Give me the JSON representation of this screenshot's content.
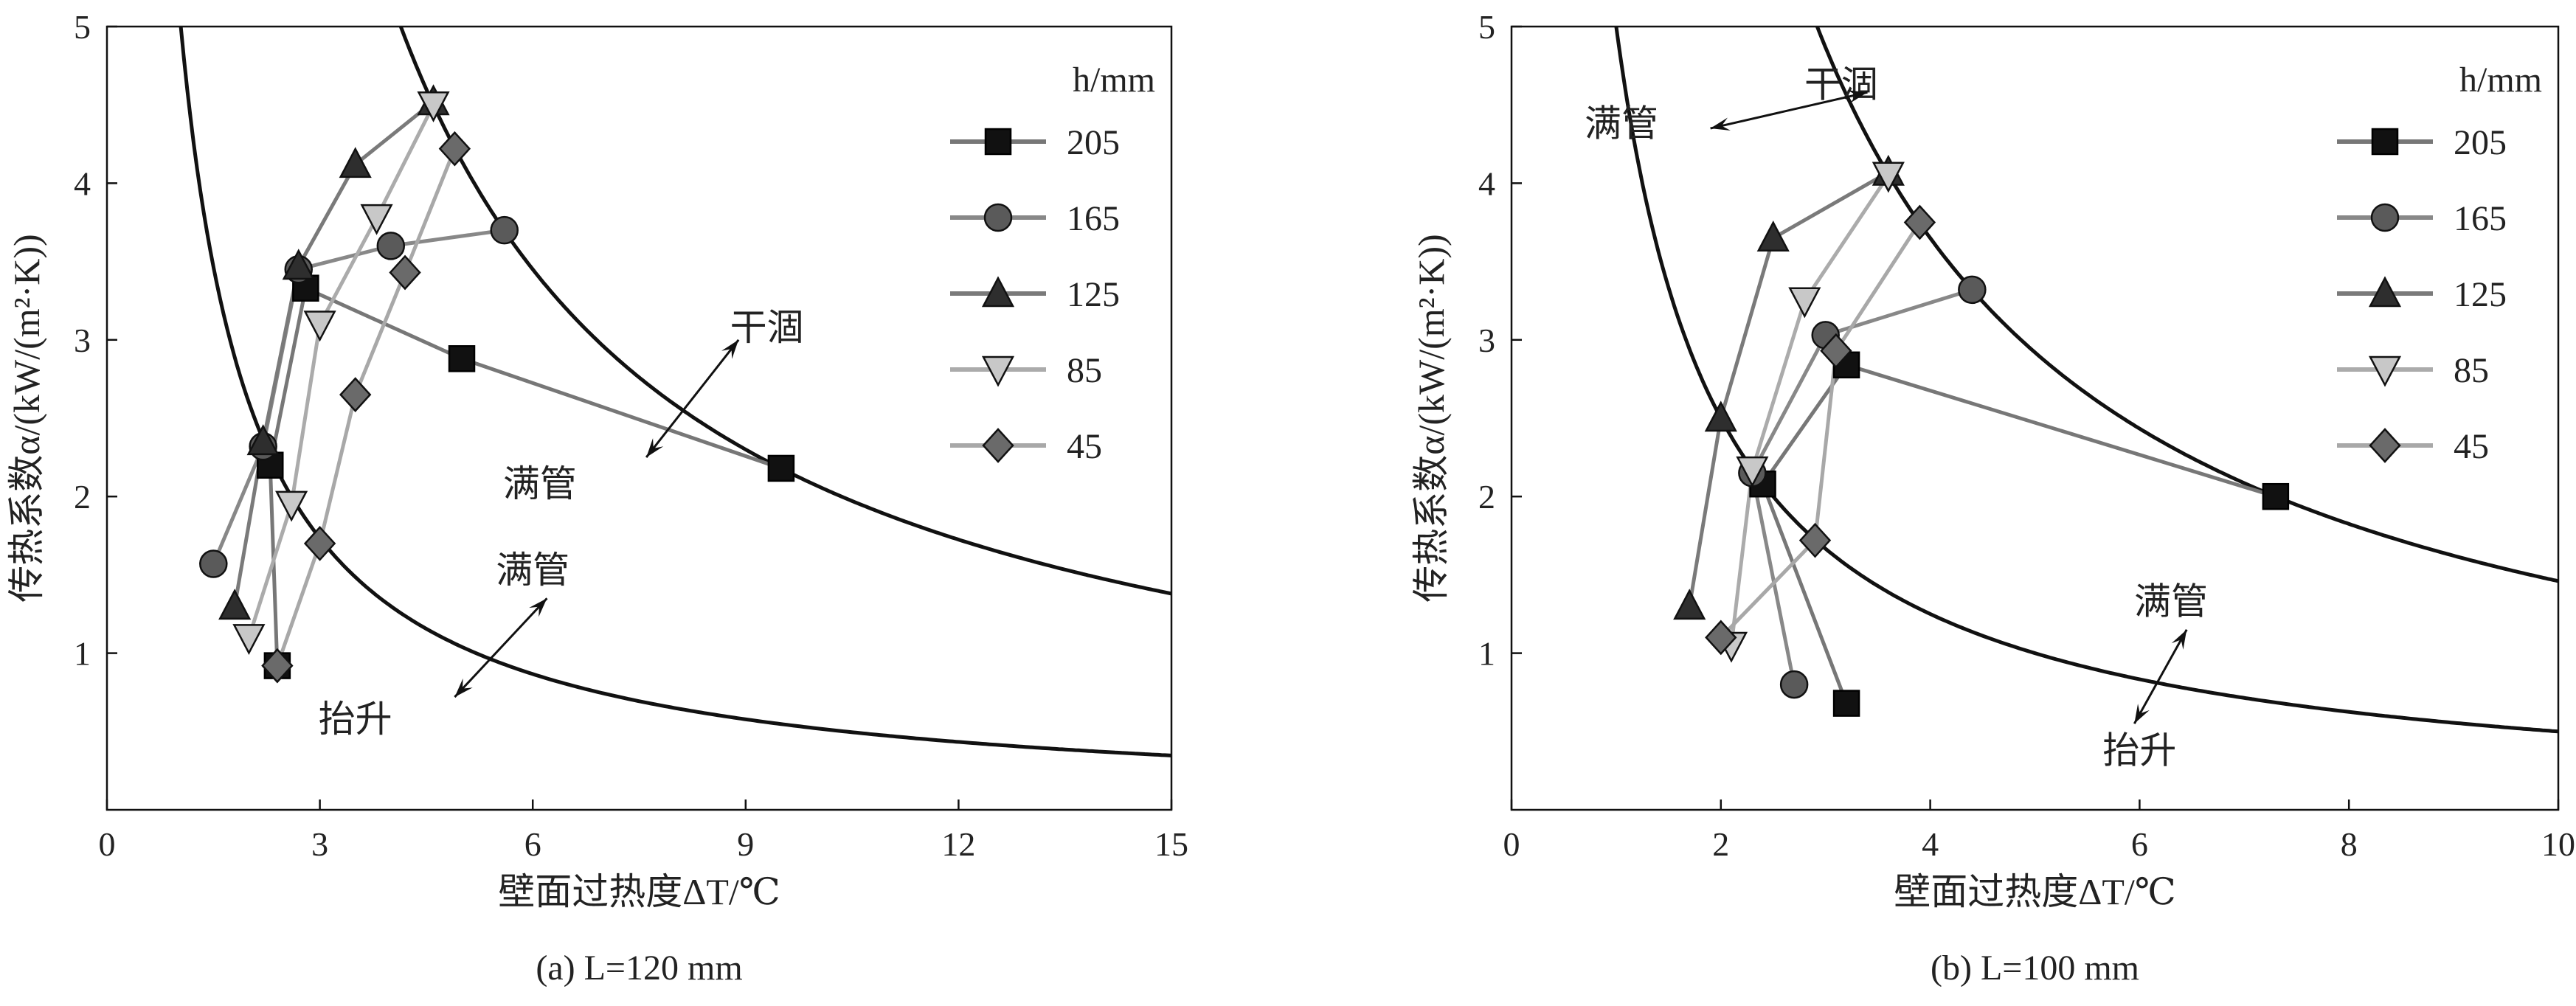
{
  "chart_data": [
    {
      "type": "line",
      "panel": "a",
      "caption": "(a) L=120 mm",
      "xlabel": "壁面过热度ΔT/℃",
      "ylabel": "传热系数α/(kW/(m²·K))",
      "xlim": [
        0,
        15
      ],
      "ylim": [
        0,
        5
      ],
      "xticks": [
        0,
        3,
        6,
        9,
        12,
        15
      ],
      "yticks": [
        1,
        2,
        3,
        4,
        5
      ],
      "ytick_labels": [
        "1",
        "2",
        "3",
        "4",
        "5"
      ],
      "legend_title": "h/mm",
      "legend_position": "top-right",
      "boundary_curves": [
        {
          "name": "lift-to-full boundary",
          "form": "y=k/x",
          "k": 5.2
        },
        {
          "name": "full-to-dryout boundary",
          "form": "y=k/x",
          "k": 20.7
        }
      ],
      "series": [
        {
          "name": "205",
          "marker": "square",
          "x": [
            2.4,
            2.3,
            2.8,
            5.0,
            9.5
          ],
          "y": [
            0.92,
            2.2,
            3.33,
            2.88,
            2.18
          ]
        },
        {
          "name": "165",
          "marker": "circle",
          "x": [
            1.5,
            2.2,
            2.7,
            4.0,
            5.6
          ],
          "y": [
            1.57,
            2.32,
            3.45,
            3.6,
            3.7
          ]
        },
        {
          "name": "125",
          "marker": "triangle-up",
          "x": [
            1.8,
            2.2,
            2.7,
            3.5,
            4.6
          ],
          "y": [
            1.3,
            2.35,
            3.47,
            4.12,
            4.52
          ]
        },
        {
          "name": "85",
          "marker": "triangle-down",
          "x": [
            2.0,
            2.6,
            3.0,
            3.8,
            4.6
          ],
          "y": [
            1.1,
            1.95,
            3.1,
            3.78,
            4.5
          ]
        },
        {
          "name": "45",
          "marker": "diamond",
          "x": [
            2.4,
            3.0,
            3.5,
            4.2,
            4.9
          ],
          "y": [
            0.92,
            1.7,
            2.65,
            3.43,
            4.22
          ]
        }
      ],
      "annotations": [
        {
          "text": "干涸",
          "x": 9.3,
          "y": 3.0
        },
        {
          "text": "满管",
          "x": 6.1,
          "y": 2.0
        },
        {
          "text": "满管",
          "x": 6.0,
          "y": 1.45
        },
        {
          "text": "抬升",
          "x": 3.5,
          "y": 0.5
        }
      ],
      "arrows": [
        {
          "from": [
            7.6,
            2.25
          ],
          "to": [
            8.9,
            3.0
          ]
        },
        {
          "from": [
            4.9,
            0.72
          ],
          "to": [
            6.2,
            1.35
          ]
        }
      ]
    },
    {
      "type": "line",
      "panel": "b",
      "caption": "(b) L=100 mm",
      "xlabel": "壁面过热度ΔT/℃",
      "ylabel": "传热系数α/(kW/(m²·K))",
      "xlim": [
        0,
        10
      ],
      "ylim": [
        0,
        5
      ],
      "xticks": [
        0,
        2,
        4,
        6,
        8,
        10
      ],
      "yticks": [
        1,
        2,
        3,
        4,
        5
      ],
      "ytick_labels": [
        "1",
        "2",
        "3",
        "4",
        "5"
      ],
      "legend_title": "h/mm",
      "legend_position": "top-right",
      "boundary_curves": [
        {
          "name": "lift-to-full boundary",
          "form": "y=k/x",
          "k": 5.0
        },
        {
          "name": "full-to-dryout boundary",
          "form": "y=k/x",
          "k": 14.6
        }
      ],
      "series": [
        {
          "name": "205",
          "marker": "square",
          "x": [
            3.2,
            2.4,
            3.2,
            7.3
          ],
          "y": [
            0.68,
            2.08,
            2.84,
            2.0
          ]
        },
        {
          "name": "165",
          "marker": "circle",
          "x": [
            2.7,
            2.3,
            3.0,
            4.4
          ],
          "y": [
            0.8,
            2.15,
            3.03,
            3.32
          ]
        },
        {
          "name": "125",
          "marker": "triangle-up",
          "x": [
            1.7,
            2.0,
            2.5,
            3.6
          ],
          "y": [
            1.3,
            2.5,
            3.65,
            4.07
          ]
        },
        {
          "name": "85",
          "marker": "triangle-down",
          "x": [
            2.1,
            2.3,
            2.8,
            3.6
          ],
          "y": [
            1.05,
            2.17,
            3.25,
            4.05
          ]
        },
        {
          "name": "45",
          "marker": "diamond",
          "x": [
            2.0,
            2.9,
            3.1,
            3.9
          ],
          "y": [
            1.1,
            1.72,
            2.93,
            3.75
          ]
        }
      ],
      "annotations": [
        {
          "text": "满管",
          "x": 1.05,
          "y": 4.3
        },
        {
          "text": "干涸",
          "x": 3.15,
          "y": 4.55
        },
        {
          "text": "满管",
          "x": 6.3,
          "y": 1.25
        },
        {
          "text": "抬升",
          "x": 6.0,
          "y": 0.3
        }
      ],
      "arrows": [
        {
          "from": [
            1.9,
            4.35
          ],
          "to": [
            3.4,
            4.58
          ]
        },
        {
          "from": [
            5.95,
            0.55
          ],
          "to": [
            6.45,
            1.15
          ]
        }
      ]
    }
  ],
  "colors": {
    "205": {
      "fill": "#111111",
      "line": "#777777"
    },
    "165": {
      "fill": "#5a5a5a",
      "line": "#888888"
    },
    "125": {
      "fill": "#2e2e2e",
      "line": "#7a7a7a"
    },
    "85": {
      "fill": "#c8c8c8",
      "line": "#ababab"
    },
    "45": {
      "fill": "#6a6a6a",
      "line": "#a8a8a8"
    },
    "curve": "#111111"
  }
}
